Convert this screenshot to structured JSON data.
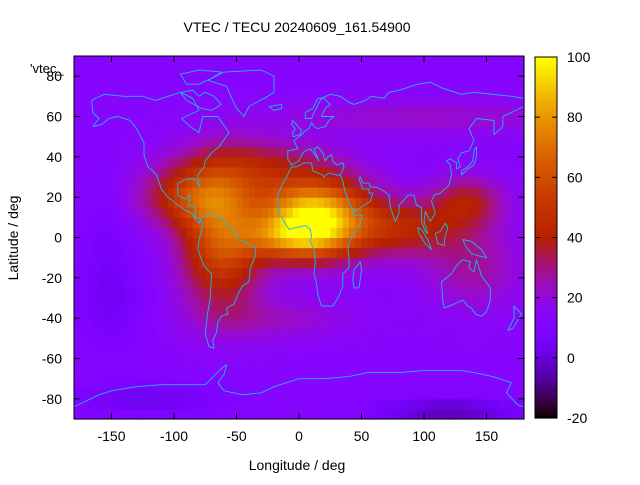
{
  "chart_data": {
    "type": "heatmap",
    "title": "VTEC / TECU 20240609_161.54900",
    "xlabel": "Longitude / deg",
    "ylabel": "Latitude / deg",
    "xlim": [
      -180,
      180
    ],
    "ylim": [
      -90,
      90
    ],
    "x_ticks": [
      -150,
      -100,
      -50,
      0,
      50,
      100,
      150
    ],
    "y_ticks": [
      -80,
      -60,
      -40,
      -20,
      0,
      20,
      40,
      60,
      80
    ],
    "x_tick_labels": [
      "-150",
      "-100",
      "-50",
      "0",
      "50",
      "100",
      "150"
    ],
    "y_tick_labels": [
      "-80",
      "-60",
      "-40",
      "-20",
      "0",
      "20",
      "40",
      "60",
      "80"
    ],
    "colorbar": {
      "range": [
        -20,
        100
      ],
      "ticks": [
        -20,
        0,
        20,
        40,
        60,
        80,
        100
      ],
      "tick_labels": [
        "-20",
        "0",
        "20",
        "40",
        "60",
        "80",
        "100"
      ],
      "palette": "gnuplot-pm3d"
    },
    "legend_key": "'vtec_",
    "overlay": "coastlines",
    "overlay_color": "#1fb7e6",
    "grid": false,
    "field_features": [
      {
        "description": "equatorial anomaly peak over west Africa",
        "lon": 10,
        "lat": 12,
        "vtec": 98
      },
      {
        "description": "high TEC over South America",
        "lon": -65,
        "lat": -5,
        "vtec": 60
      },
      {
        "description": "moderate TEC over southern Asia",
        "lon": 110,
        "lat": 10,
        "vtec": 45
      },
      {
        "description": "background Pacific",
        "lon": -150,
        "lat": 0,
        "vtec": 15
      },
      {
        "description": "polar minimum",
        "lon": 120,
        "lat": -85,
        "vtec": -5
      }
    ]
  }
}
